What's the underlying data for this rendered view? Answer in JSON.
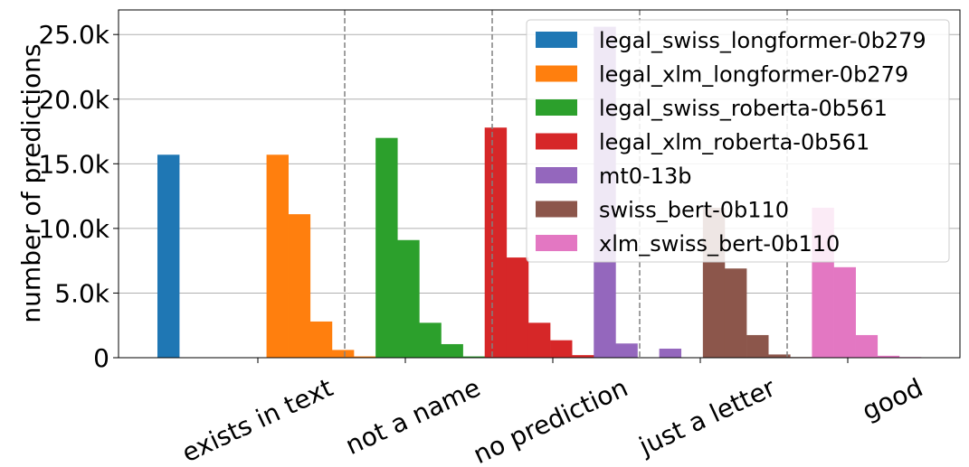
{
  "chart_data": {
    "type": "bar",
    "ylabel": "number of predictions",
    "xlabel": "",
    "categories": [
      "exists in text",
      "not a name",
      "no prediction",
      "just a letter",
      "good"
    ],
    "yticks": [
      0,
      5000,
      10000,
      15000,
      20000,
      25000
    ],
    "ytick_labels": [
      "0",
      "5.0k",
      "10.0k",
      "15.0k",
      "20.0k",
      "25.0k"
    ],
    "ylim": [
      0,
      26900
    ],
    "grid": "horizontal",
    "legend_position": "top-right",
    "series": [
      {
        "name": "legal_swiss_longformer-0b279",
        "color": "#1f77b4",
        "values": [
          15700,
          0,
          0,
          0,
          0
        ]
      },
      {
        "name": "legal_xlm_longformer-0b279",
        "color": "#ff7f0e",
        "values": [
          15700,
          11100,
          2800,
          600,
          100
        ]
      },
      {
        "name": "legal_swiss_roberta-0b561",
        "color": "#2ca02c",
        "values": [
          17000,
          9100,
          2700,
          1050,
          100
        ]
      },
      {
        "name": "legal_xlm_roberta-0b561",
        "color": "#d62728",
        "values": [
          17800,
          7750,
          2700,
          1350,
          200
        ]
      },
      {
        "name": "mt0-13b",
        "color": "#9467bd",
        "values": [
          25600,
          1100,
          0,
          700,
          0
        ]
      },
      {
        "name": "swiss_bert-0b110",
        "color": "#8c564b",
        "values": [
          11600,
          6900,
          1750,
          250,
          50
        ]
      },
      {
        "name": "xlm_swiss_bert-0b110",
        "color": "#e377c2",
        "values": [
          11600,
          7000,
          1750,
          150,
          50
        ]
      }
    ]
  }
}
